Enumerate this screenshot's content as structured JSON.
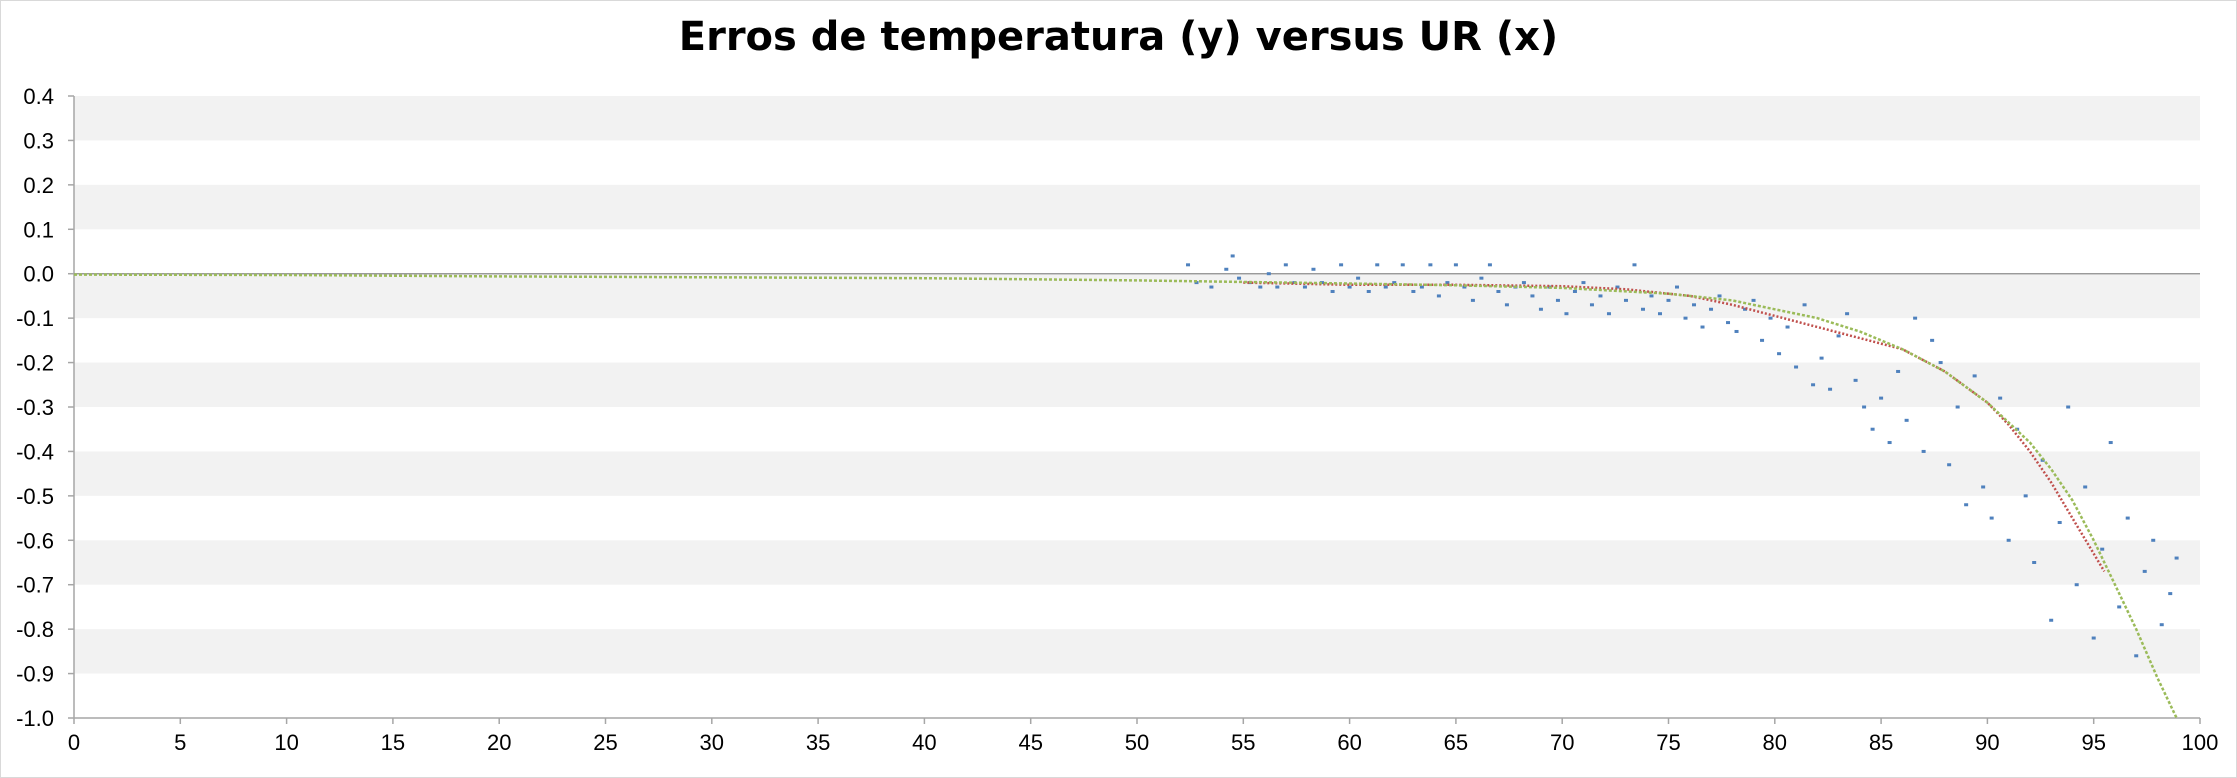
{
  "chart_data": {
    "type": "scatter",
    "title": "Erros de temperatura (y) versus UR (x)",
    "xlabel": "",
    "ylabel": "",
    "xlim": [
      0,
      100
    ],
    "ylim": [
      -1.0,
      0.4
    ],
    "x_ticks": [
      0,
      5,
      10,
      15,
      20,
      25,
      30,
      35,
      40,
      45,
      50,
      55,
      60,
      65,
      70,
      75,
      80,
      85,
      90,
      95,
      100
    ],
    "y_ticks": [
      0.4,
      0.3,
      0.2,
      0.1,
      0.0,
      -0.1,
      -0.2,
      -0.3,
      -0.4,
      -0.5,
      -0.6,
      -0.7,
      -0.8,
      -0.9,
      -1.0
    ],
    "x_tick_labels": [
      "0",
      "5",
      "10",
      "15",
      "20",
      "25",
      "30",
      "35",
      "40",
      "45",
      "50",
      "55",
      "60",
      "65",
      "70",
      "75",
      "80",
      "85",
      "90",
      "95",
      "100"
    ],
    "y_tick_labels": [
      "0.4",
      "0.3",
      "0.2",
      "0.1",
      "0.0",
      "-0.1",
      "-0.2",
      "-0.3",
      "-0.4",
      "-0.5",
      "-0.6",
      "-0.7",
      "-0.8",
      "-0.9",
      "-1.0"
    ],
    "grid": "alternating horizontal bands",
    "legend": "none",
    "colors": {
      "observed": "#4f81bd",
      "mean_curve": "#c0504d",
      "fit_curve": "#9bbb59",
      "band": "#f2f2f2",
      "axis": "#a6a6a6"
    },
    "series": [
      {
        "type": "scatter",
        "color": "#4f81bd",
        "points": [
          [
            52.4,
            0.02
          ],
          [
            52.8,
            -0.02
          ],
          [
            53.5,
            -0.03
          ],
          [
            54.2,
            0.01
          ],
          [
            54.5,
            0.04
          ],
          [
            54.8,
            -0.01
          ],
          [
            55.3,
            -0.02
          ],
          [
            55.8,
            -0.03
          ],
          [
            56.2,
            0.0
          ],
          [
            56.6,
            -0.03
          ],
          [
            57.0,
            0.02
          ],
          [
            57.4,
            -0.02
          ],
          [
            57.9,
            -0.03
          ],
          [
            58.3,
            0.01
          ],
          [
            58.7,
            -0.02
          ],
          [
            59.2,
            -0.04
          ],
          [
            59.6,
            0.02
          ],
          [
            60.0,
            -0.03
          ],
          [
            60.4,
            -0.01
          ],
          [
            60.9,
            -0.04
          ],
          [
            61.3,
            0.02
          ],
          [
            61.7,
            -0.03
          ],
          [
            62.1,
            -0.02
          ],
          [
            62.5,
            0.02
          ],
          [
            63.0,
            -0.04
          ],
          [
            63.4,
            -0.03
          ],
          [
            63.8,
            0.02
          ],
          [
            64.2,
            -0.05
          ],
          [
            64.6,
            -0.02
          ],
          [
            65.0,
            0.02
          ],
          [
            65.4,
            -0.03
          ],
          [
            65.8,
            -0.06
          ],
          [
            66.2,
            -0.01
          ],
          [
            66.6,
            0.02
          ],
          [
            67.0,
            -0.04
          ],
          [
            67.4,
            -0.07
          ],
          [
            67.8,
            -0.03
          ],
          [
            68.2,
            -0.02
          ],
          [
            68.6,
            -0.05
          ],
          [
            69.0,
            -0.08
          ],
          [
            69.4,
            -0.03
          ],
          [
            69.8,
            -0.06
          ],
          [
            70.2,
            -0.09
          ],
          [
            70.6,
            -0.04
          ],
          [
            71.0,
            -0.02
          ],
          [
            71.4,
            -0.07
          ],
          [
            71.8,
            -0.05
          ],
          [
            72.2,
            -0.09
          ],
          [
            72.6,
            -0.03
          ],
          [
            73.0,
            -0.06
          ],
          [
            73.4,
            0.02
          ],
          [
            73.8,
            -0.08
          ],
          [
            74.2,
            -0.05
          ],
          [
            74.6,
            -0.09
          ],
          [
            75.0,
            -0.06
          ],
          [
            75.4,
            -0.03
          ],
          [
            75.8,
            -0.1
          ],
          [
            76.2,
            -0.07
          ],
          [
            76.6,
            -0.12
          ],
          [
            77.0,
            -0.08
          ],
          [
            77.4,
            -0.05
          ],
          [
            77.8,
            -0.11
          ],
          [
            78.2,
            -0.13
          ],
          [
            78.6,
            -0.08
          ],
          [
            79.0,
            -0.06
          ],
          [
            79.4,
            -0.15
          ],
          [
            79.8,
            -0.1
          ],
          [
            80.2,
            -0.18
          ],
          [
            80.6,
            -0.12
          ],
          [
            81.0,
            -0.21
          ],
          [
            81.4,
            -0.07
          ],
          [
            81.8,
            -0.25
          ],
          [
            82.2,
            -0.19
          ],
          [
            82.6,
            -0.26
          ],
          [
            83.0,
            -0.14
          ],
          [
            83.4,
            -0.09
          ],
          [
            83.8,
            -0.24
          ],
          [
            84.2,
            -0.3
          ],
          [
            84.6,
            -0.35
          ],
          [
            85.0,
            -0.28
          ],
          [
            85.4,
            -0.38
          ],
          [
            85.8,
            -0.22
          ],
          [
            86.2,
            -0.33
          ],
          [
            86.6,
            -0.1
          ],
          [
            87.0,
            -0.4
          ],
          [
            87.4,
            -0.15
          ],
          [
            87.8,
            -0.2
          ],
          [
            88.2,
            -0.43
          ],
          [
            88.6,
            -0.3
          ],
          [
            89.0,
            -0.52
          ],
          [
            89.4,
            -0.23
          ],
          [
            89.8,
            -0.48
          ],
          [
            90.2,
            -0.55
          ],
          [
            90.6,
            -0.28
          ],
          [
            91.0,
            -0.6
          ],
          [
            91.4,
            -0.35
          ],
          [
            91.8,
            -0.5
          ],
          [
            92.2,
            -0.65
          ],
          [
            92.6,
            -0.42
          ],
          [
            93.0,
            -0.78
          ],
          [
            93.4,
            -0.56
          ],
          [
            93.8,
            -0.3
          ],
          [
            94.2,
            -0.7
          ],
          [
            94.6,
            -0.48
          ],
          [
            95.0,
            -0.82
          ],
          [
            95.4,
            -0.62
          ],
          [
            95.8,
            -0.38
          ],
          [
            96.2,
            -0.75
          ],
          [
            96.6,
            -0.55
          ],
          [
            97.0,
            -0.86
          ],
          [
            97.4,
            -0.67
          ],
          [
            97.8,
            -0.6
          ],
          [
            98.2,
            -0.79
          ],
          [
            98.6,
            -0.72
          ],
          [
            98.9,
            -0.64
          ]
        ]
      },
      {
        "type": "line",
        "color": "#c0504d",
        "points": [
          [
            55,
            -0.02
          ],
          [
            60,
            -0.025
          ],
          [
            65,
            -0.025
          ],
          [
            70,
            -0.028
          ],
          [
            73,
            -0.035
          ],
          [
            76,
            -0.05
          ],
          [
            78,
            -0.07
          ],
          [
            80,
            -0.095
          ],
          [
            82,
            -0.12
          ],
          [
            84,
            -0.145
          ],
          [
            86,
            -0.17
          ],
          [
            88,
            -0.22
          ],
          [
            90,
            -0.29
          ],
          [
            91,
            -0.34
          ],
          [
            92,
            -0.4
          ],
          [
            93,
            -0.47
          ],
          [
            94,
            -0.55
          ],
          [
            95,
            -0.63
          ],
          [
            95.5,
            -0.67
          ]
        ]
      },
      {
        "type": "line",
        "color": "#9bbb59",
        "points": [
          [
            0,
            -0.002
          ],
          [
            10,
            -0.003
          ],
          [
            20,
            -0.006
          ],
          [
            30,
            -0.008
          ],
          [
            40,
            -0.01
          ],
          [
            50,
            -0.015
          ],
          [
            60,
            -0.022
          ],
          [
            65,
            -0.026
          ],
          [
            70,
            -0.032
          ],
          [
            75,
            -0.045
          ],
          [
            78,
            -0.06
          ],
          [
            80,
            -0.08
          ],
          [
            82,
            -0.1
          ],
          [
            84,
            -0.13
          ],
          [
            86,
            -0.17
          ],
          [
            88,
            -0.22
          ],
          [
            90,
            -0.29
          ],
          [
            92,
            -0.38
          ],
          [
            93,
            -0.44
          ],
          [
            94,
            -0.51
          ],
          [
            95,
            -0.6
          ],
          [
            96,
            -0.7
          ],
          [
            97,
            -0.8
          ],
          [
            98,
            -0.91
          ],
          [
            98.9,
            -1.0
          ]
        ]
      }
    ]
  }
}
